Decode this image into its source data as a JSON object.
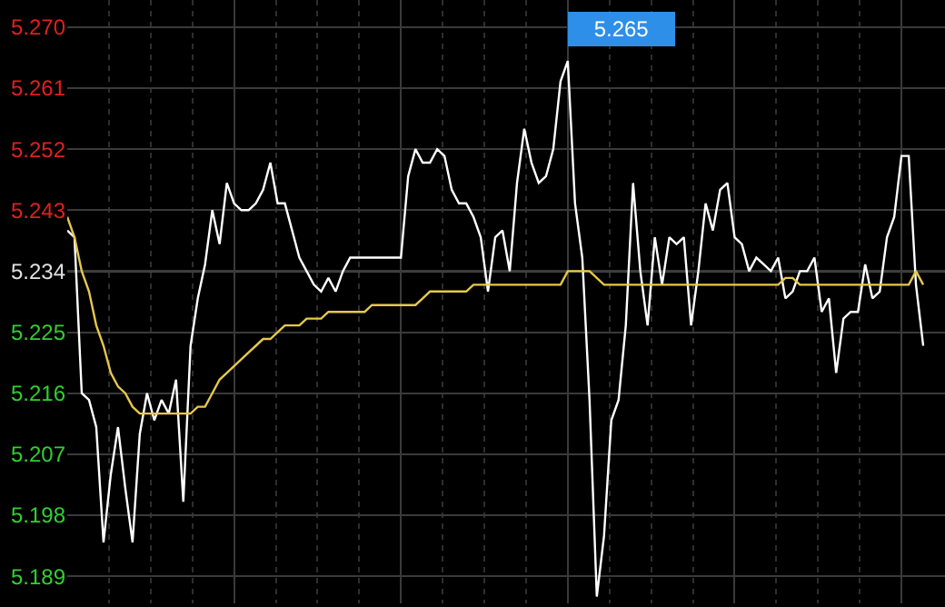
{
  "chart_data": {
    "type": "line",
    "categories": [
      null,
      null,
      null,
      null,
      null,
      null,
      null,
      null,
      null,
      null,
      null,
      null,
      null,
      null,
      null,
      null,
      null,
      null,
      null,
      null,
      null,
      null,
      null,
      null,
      null,
      null,
      null,
      null,
      null,
      null,
      null,
      null,
      null,
      null,
      null,
      null,
      null,
      null,
      null,
      null,
      null,
      null,
      null,
      null,
      null,
      null,
      null,
      null,
      null,
      null,
      null,
      null,
      null,
      null,
      null,
      null,
      null,
      null,
      null,
      null,
      null,
      null,
      null,
      null,
      null,
      null,
      null,
      null,
      null,
      null,
      null,
      null,
      null,
      null,
      null,
      null,
      null,
      null,
      null,
      null,
      null,
      null,
      null,
      null,
      null,
      null,
      null,
      null,
      null,
      null,
      null,
      null,
      null,
      null,
      null,
      null,
      null,
      null,
      null,
      null,
      null,
      null,
      null,
      null,
      null,
      null,
      null,
      null,
      null,
      null,
      null,
      null,
      null,
      null,
      null,
      null,
      null,
      null,
      null
    ],
    "series": [
      {
        "color": "#ffffff",
        "values": [
          5.24,
          5.239,
          5.216,
          5.215,
          5.211,
          5.194,
          5.204,
          5.211,
          5.202,
          5.194,
          5.21,
          5.216,
          5.212,
          5.215,
          5.213,
          5.218,
          5.2,
          5.223,
          5.23,
          5.235,
          5.243,
          5.238,
          5.247,
          5.244,
          5.243,
          5.243,
          5.244,
          5.246,
          5.25,
          5.244,
          5.244,
          5.24,
          5.236,
          5.234,
          5.232,
          5.231,
          5.233,
          5.231,
          5.234,
          5.236,
          5.236,
          5.236,
          5.236,
          5.236,
          5.236,
          5.236,
          5.236,
          5.248,
          5.252,
          5.25,
          5.25,
          5.252,
          5.251,
          5.246,
          5.244,
          5.244,
          5.242,
          5.239,
          5.231,
          5.239,
          5.24,
          5.234,
          5.247,
          5.255,
          5.25,
          5.247,
          5.248,
          5.252,
          5.262,
          5.265,
          5.244,
          5.236,
          5.215,
          5.186,
          5.195,
          5.212,
          5.215,
          5.226,
          5.247,
          5.234,
          5.226,
          5.239,
          5.232,
          5.239,
          5.238,
          5.239,
          5.226,
          5.234,
          5.244,
          5.24,
          5.246,
          5.247,
          5.239,
          5.238,
          5.234,
          5.236,
          5.235,
          5.234,
          5.236,
          5.23,
          5.231,
          5.234,
          5.234,
          5.236,
          5.228,
          5.23,
          5.219,
          5.227,
          5.228,
          5.228,
          5.235,
          5.23,
          5.231,
          5.239,
          5.242,
          5.251,
          5.251,
          5.232,
          5.223
        ]
      },
      {
        "color": "#e6c84a",
        "values": [
          5.242,
          5.239,
          5.234,
          5.231,
          5.226,
          5.223,
          5.219,
          5.217,
          5.216,
          5.214,
          5.213,
          5.213,
          5.213,
          5.213,
          5.213,
          5.213,
          5.213,
          5.213,
          5.214,
          5.214,
          5.216,
          5.218,
          5.219,
          5.22,
          5.221,
          5.222,
          5.223,
          5.224,
          5.224,
          5.225,
          5.226,
          5.226,
          5.226,
          5.227,
          5.227,
          5.227,
          5.228,
          5.228,
          5.228,
          5.228,
          5.228,
          5.228,
          5.229,
          5.229,
          5.229,
          5.229,
          5.229,
          5.229,
          5.229,
          5.23,
          5.231,
          5.231,
          5.231,
          5.231,
          5.231,
          5.231,
          5.232,
          5.232,
          5.232,
          5.232,
          5.232,
          5.232,
          5.232,
          5.232,
          5.232,
          5.232,
          5.232,
          5.232,
          5.232,
          5.234,
          5.234,
          5.234,
          5.234,
          5.233,
          5.232,
          5.232,
          5.232,
          5.232,
          5.232,
          5.232,
          5.232,
          5.232,
          5.232,
          5.232,
          5.232,
          5.232,
          5.232,
          5.232,
          5.232,
          5.232,
          5.232,
          5.232,
          5.232,
          5.232,
          5.232,
          5.232,
          5.232,
          5.232,
          5.232,
          5.233,
          5.233,
          5.232,
          5.232,
          5.232,
          5.232,
          5.232,
          5.232,
          5.232,
          5.232,
          5.232,
          5.232,
          5.232,
          5.232,
          5.232,
          5.232,
          5.232,
          5.232,
          5.234,
          5.232
        ]
      }
    ],
    "ylim": [
      5.185,
      5.274
    ],
    "yticks": [
      {
        "value": 5.27,
        "label": "5.270"
      },
      5.261,
      5.252,
      5.243,
      5.234,
      5.225,
      5.216,
      5.207,
      5.198,
      5.189
    ],
    "ref_lines": [
      {
        "axis": "y",
        "value": 5.234,
        "color": "#8c8c8c"
      }
    ],
    "annotations": [
      "5.265"
    ],
    "grid": true,
    "tick_labels": "y"
  }
}
